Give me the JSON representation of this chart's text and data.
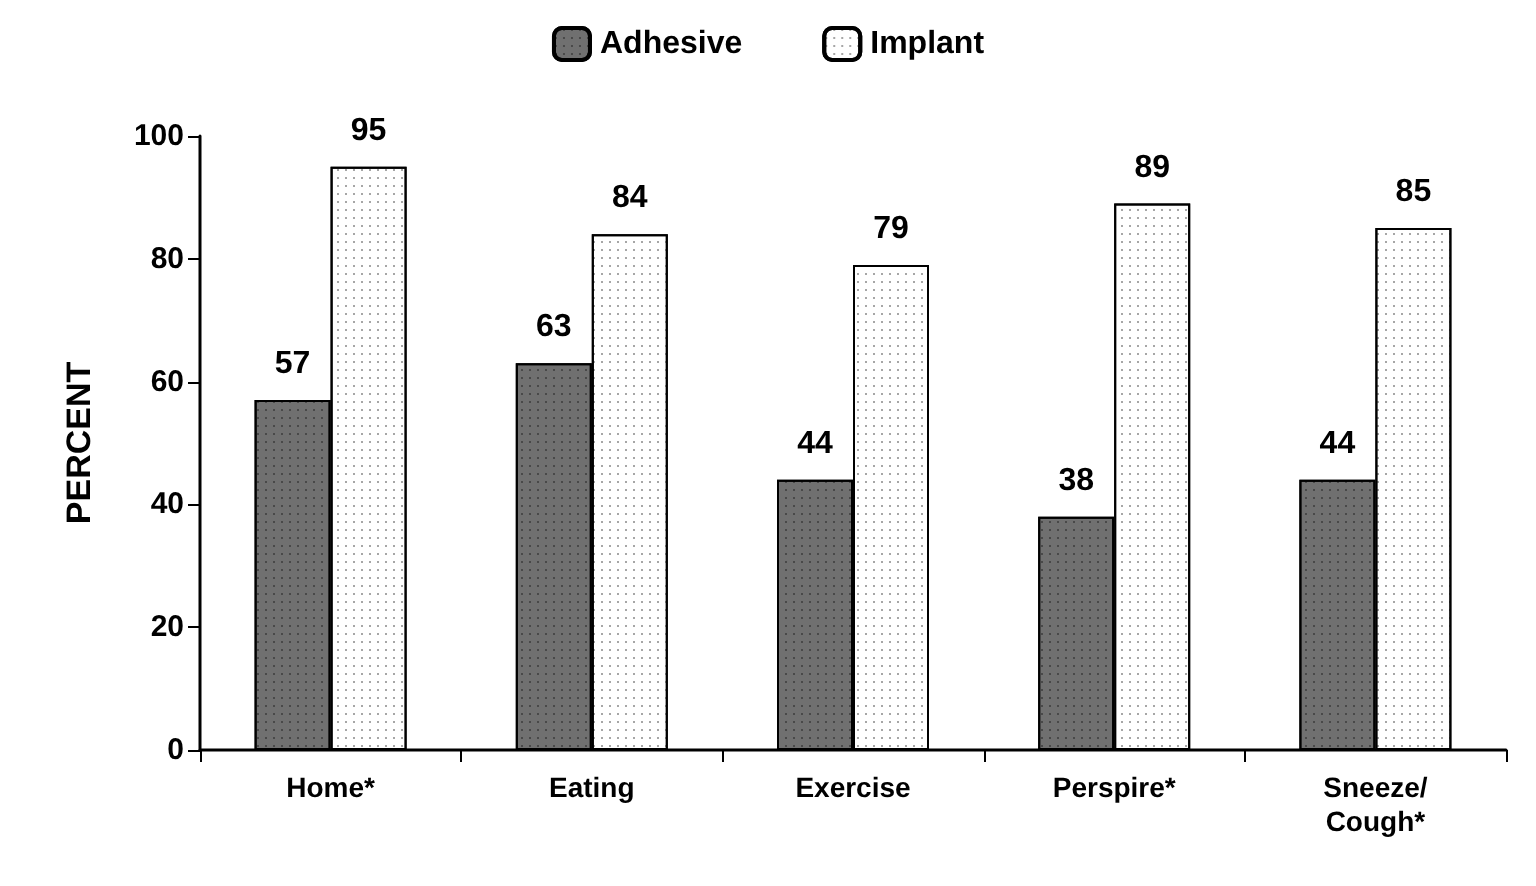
{
  "chart_data": {
    "type": "bar",
    "ylabel": "PERCENT",
    "categories": [
      "Home*",
      "Eating",
      "Exercise",
      "Perspire*",
      "Sneeze/\nCough*"
    ],
    "series": [
      {
        "name": "Adhesive",
        "color": "#707070",
        "values": [
          57,
          63,
          44,
          38,
          44
        ]
      },
      {
        "name": "Implant",
        "color": "#ffffff",
        "values": [
          95,
          84,
          79,
          89,
          85
        ]
      }
    ],
    "ylim": [
      0,
      100
    ],
    "yticks": [
      0,
      20,
      40,
      60,
      80,
      100
    ],
    "grid": false,
    "legend": "top",
    "data_labels": true
  }
}
